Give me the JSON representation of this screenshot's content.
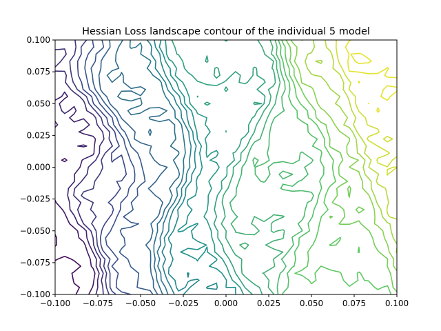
{
  "chart_data": {
    "type": "contour",
    "title": "Hessian Loss landscape contour of the individual 5 model",
    "xlabel": "",
    "ylabel": "",
    "xlim": [
      -0.1,
      0.1
    ],
    "ylim": [
      -0.1,
      0.1
    ],
    "x_ticks": [
      -0.1,
      -0.075,
      -0.05,
      -0.025,
      0.0,
      0.025,
      0.05,
      0.075,
      0.1
    ],
    "x_tick_labels": [
      "−0.100",
      "−0.075",
      "−0.050",
      "−0.025",
      "0.000",
      "0.025",
      "0.050",
      "0.075",
      "0.100"
    ],
    "y_ticks": [
      -0.1,
      -0.075,
      -0.05,
      -0.025,
      0.0,
      0.025,
      0.05,
      0.075,
      0.1
    ],
    "y_tick_labels": [
      "−0.100",
      "−0.075",
      "−0.050",
      "−0.025",
      "0.000",
      "0.025",
      "0.050",
      "0.075",
      "0.100"
    ],
    "grid": false,
    "legend": "none",
    "colormap": "viridis",
    "colormap_stops": [
      "#440154",
      "#3b528b",
      "#21918c",
      "#5ec962",
      "#fde725"
    ],
    "surface_trend": "value increases from the lower-left (dark purple) toward the upper-right (yellow), with steep near-vertical bands around x = -0.08, -0.065, -0.03, 0.015 and 0.045 and noisy plateaus between them"
  }
}
